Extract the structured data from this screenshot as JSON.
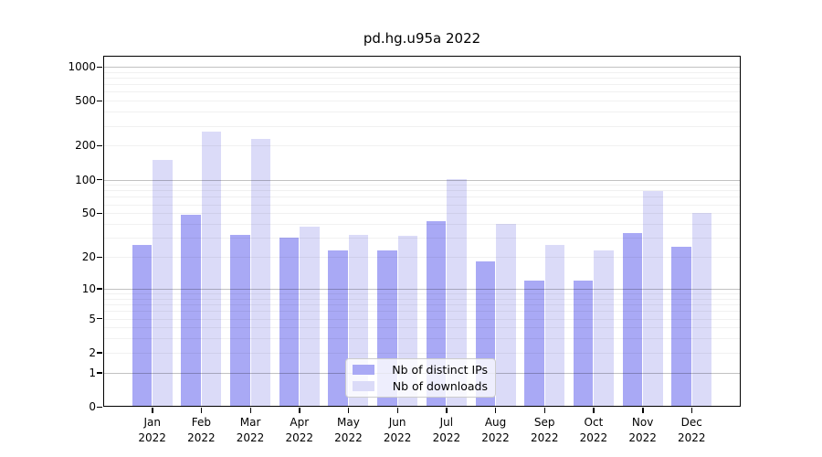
{
  "chart_data": {
    "type": "bar",
    "title": "pd.hg.u95a 2022",
    "categories": [
      "Jan",
      "Feb",
      "Mar",
      "Apr",
      "May",
      "Jun",
      "Jul",
      "Aug",
      "Sep",
      "Oct",
      "Nov",
      "Dec"
    ],
    "year_label": "2022",
    "series": [
      {
        "name": "Nb of distinct IPs",
        "color": "#a9a9f5",
        "values": [
          26,
          48,
          32,
          30,
          23,
          23,
          42,
          18,
          12,
          12,
          33,
          25
        ]
      },
      {
        "name": "Nb of downloads",
        "color": "#dbdbf8",
        "values": [
          150,
          265,
          230,
          38,
          32,
          31,
          101,
          40,
          26,
          23,
          79,
          50
        ]
      }
    ],
    "y_scale": "log10(1+y)",
    "y_ticks": [
      0,
      1,
      2,
      5,
      10,
      20,
      50,
      100,
      200,
      500,
      1000
    ],
    "y_major_gridlines": [
      1,
      10,
      100,
      1000
    ],
    "ylim": [
      0,
      1250
    ],
    "grid": true,
    "legend_position": "lower center",
    "axis_color": "#000000"
  }
}
